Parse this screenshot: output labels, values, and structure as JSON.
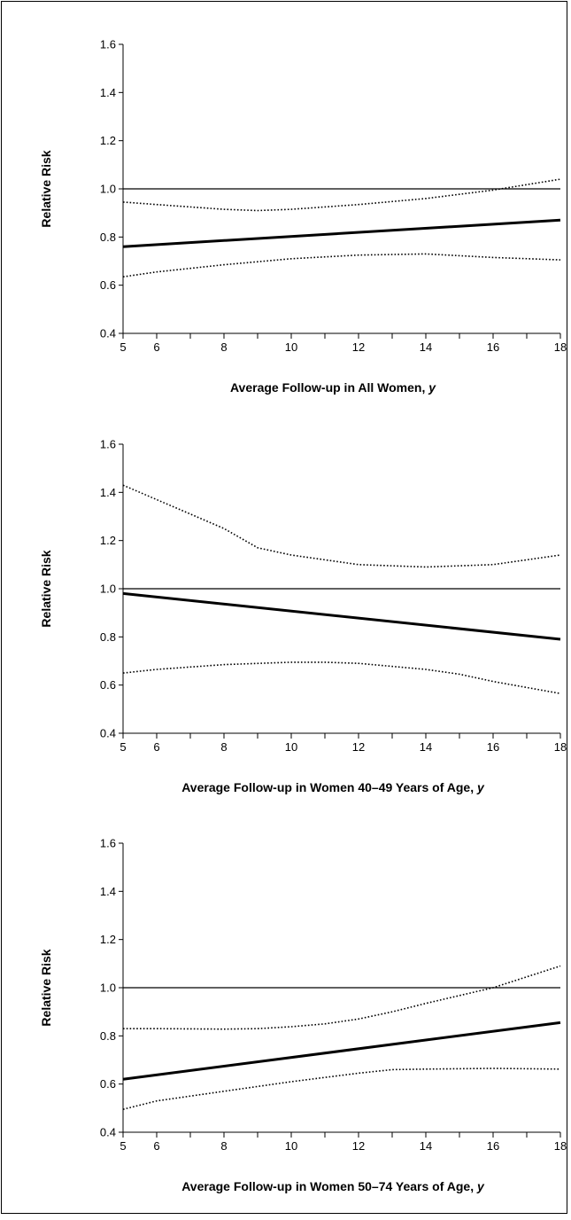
{
  "chart_data": [
    {
      "type": "line",
      "xlabel_parts": [
        "Average Follow-up in All Women, ",
        "y"
      ],
      "ylabel": "Relative Risk",
      "xlim": [
        5,
        18
      ],
      "ylim": [
        0.4,
        1.6
      ],
      "x_tick_labels": [
        "5",
        "6",
        "8",
        "10",
        "12",
        "14",
        "16",
        "18"
      ],
      "y_tick_labels": [
        "0.4",
        "0.6",
        "0.8",
        "1.0",
        "1.2",
        "1.4",
        "1.6"
      ],
      "reference_line": 1.0,
      "series": [
        {
          "style": "solid",
          "x": [
            5,
            18
          ],
          "y": [
            0.76,
            0.87
          ]
        },
        {
          "style": "dotted",
          "x": [
            5,
            6,
            8,
            9,
            10,
            12,
            14,
            16,
            18
          ],
          "y": [
            0.945,
            0.935,
            0.915,
            0.91,
            0.915,
            0.935,
            0.96,
            0.995,
            1.04
          ]
        },
        {
          "style": "dotted",
          "x": [
            5,
            6,
            8,
            10,
            12,
            14,
            16,
            18
          ],
          "y": [
            0.635,
            0.655,
            0.685,
            0.71,
            0.725,
            0.73,
            0.715,
            0.705
          ]
        }
      ]
    },
    {
      "type": "line",
      "xlabel_parts": [
        "Average Follow-up in Women 40–49 Years of Age, ",
        "y"
      ],
      "ylabel": "Relative Risk",
      "xlim": [
        5,
        18
      ],
      "ylim": [
        0.4,
        1.6
      ],
      "x_tick_labels": [
        "5",
        "6",
        "8",
        "10",
        "12",
        "14",
        "16",
        "18"
      ],
      "y_tick_labels": [
        "0.4",
        "0.6",
        "0.8",
        "1.0",
        "1.2",
        "1.4",
        "1.6"
      ],
      "reference_line": 1.0,
      "series": [
        {
          "style": "solid",
          "x": [
            5,
            18
          ],
          "y": [
            0.98,
            0.79
          ]
        },
        {
          "style": "dotted",
          "x": [
            5,
            6,
            7,
            8,
            9,
            10,
            12,
            14,
            16,
            17,
            18
          ],
          "y": [
            1.43,
            1.37,
            1.31,
            1.25,
            1.17,
            1.14,
            1.1,
            1.09,
            1.1,
            1.12,
            1.14
          ]
        },
        {
          "style": "dotted",
          "x": [
            5,
            6,
            8,
            10,
            11,
            12,
            14,
            15,
            16,
            17,
            18
          ],
          "y": [
            0.65,
            0.665,
            0.685,
            0.695,
            0.695,
            0.69,
            0.665,
            0.645,
            0.615,
            0.59,
            0.565
          ]
        }
      ]
    },
    {
      "type": "line",
      "xlabel_parts": [
        "Average Follow-up in Women 50–74 Years of Age, ",
        "y"
      ],
      "ylabel": "Relative Risk",
      "xlim": [
        5,
        18
      ],
      "ylim": [
        0.4,
        1.6
      ],
      "x_tick_labels": [
        "5",
        "6",
        "8",
        "10",
        "12",
        "14",
        "16",
        "18"
      ],
      "y_tick_labels": [
        "0.4",
        "0.6",
        "0.8",
        "1.0",
        "1.2",
        "1.4",
        "1.6"
      ],
      "reference_line": 1.0,
      "series": [
        {
          "style": "solid",
          "x": [
            5,
            18
          ],
          "y": [
            0.62,
            0.855
          ]
        },
        {
          "style": "dotted",
          "x": [
            5,
            6,
            8,
            9,
            10,
            11,
            12,
            13,
            14,
            16,
            18
          ],
          "y": [
            0.83,
            0.83,
            0.828,
            0.83,
            0.838,
            0.85,
            0.87,
            0.9,
            0.935,
            1.0,
            1.09
          ]
        },
        {
          "style": "dotted",
          "x": [
            5,
            6,
            8,
            10,
            12,
            13,
            14,
            16,
            18
          ],
          "y": [
            0.495,
            0.53,
            0.57,
            0.61,
            0.645,
            0.66,
            0.662,
            0.665,
            0.662
          ]
        }
      ]
    }
  ]
}
